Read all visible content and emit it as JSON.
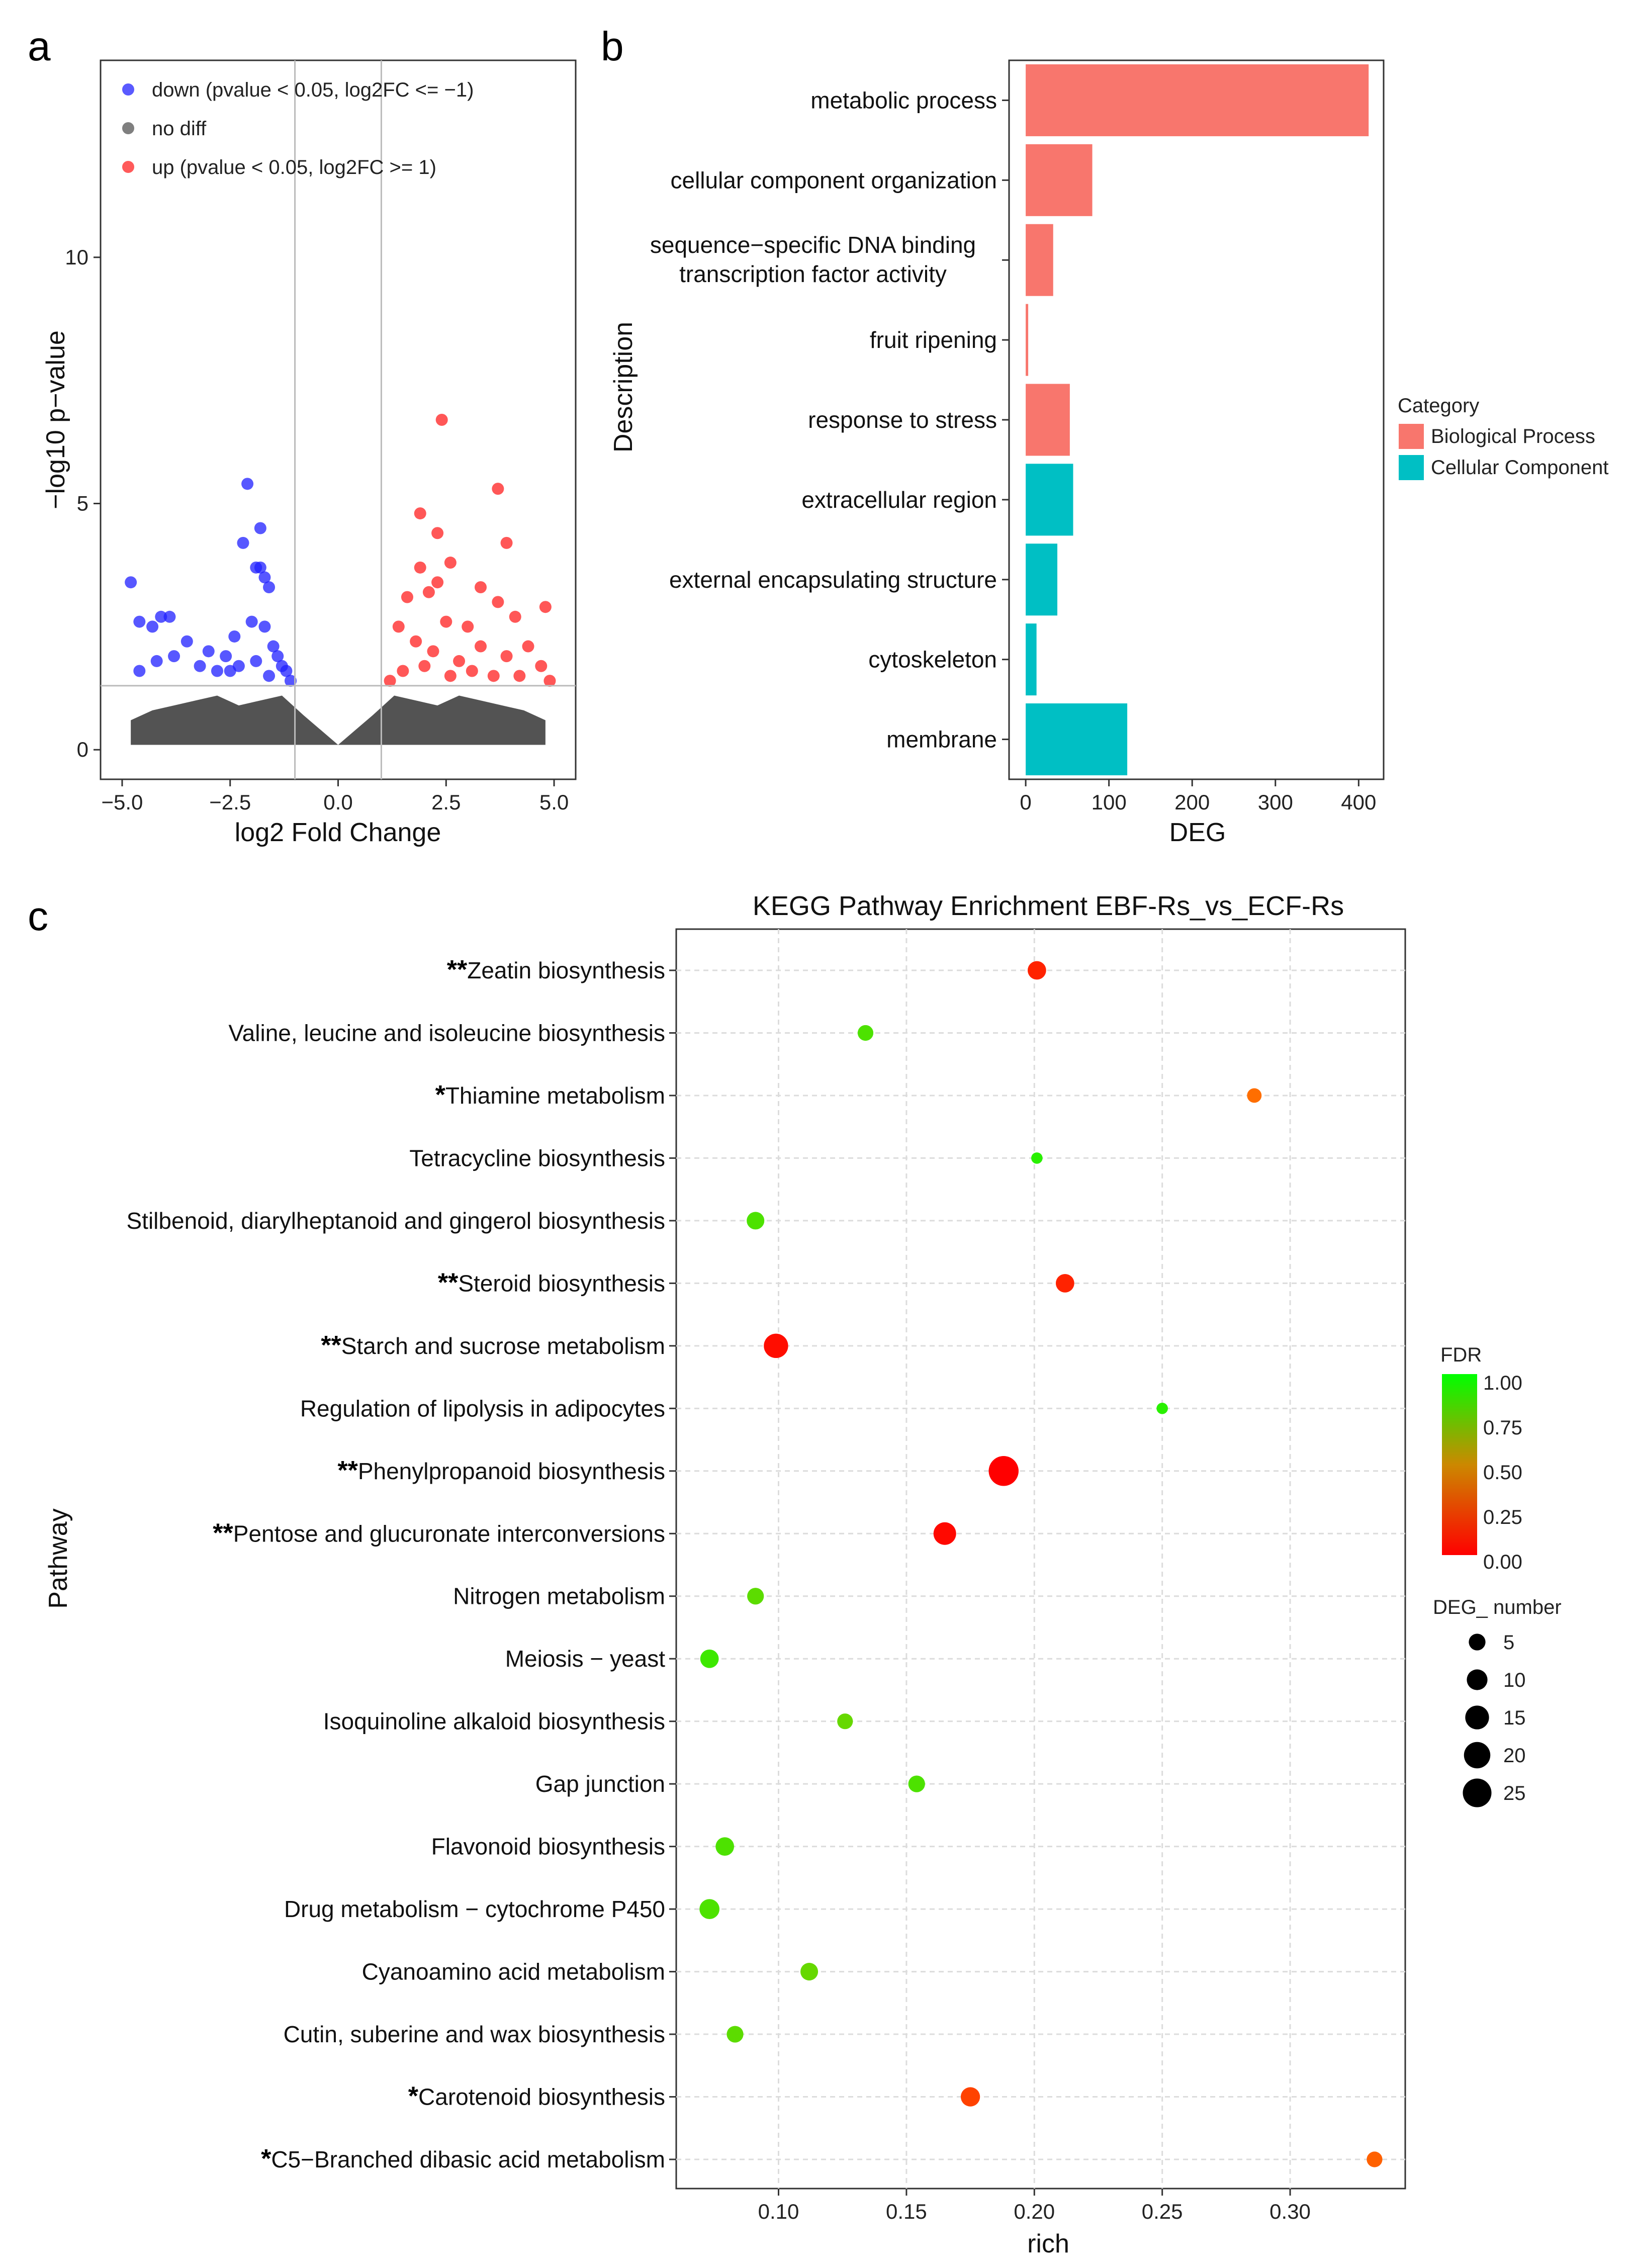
{
  "panels": {
    "a": "a",
    "b": "b",
    "c": "c"
  },
  "chart_data": [
    {
      "type": "scatter",
      "panel": "a",
      "title": "",
      "xlabel": "log2 Fold Change",
      "ylabel": "−log10 p−value",
      "xlim": [
        -5.5,
        5.5
      ],
      "ylim": [
        -0.6,
        14.0
      ],
      "xticks": [
        -5,
        -2.5,
        0,
        2.5,
        5
      ],
      "xtick_labels": [
        "−5.0",
        "−2.5",
        "0.0",
        "2.5",
        "5.0"
      ],
      "yticks": [
        0,
        5,
        10
      ],
      "ytick_labels": [
        "0",
        "5",
        "10"
      ],
      "thresholds": {
        "x": [
          -1,
          1
        ],
        "y": 1.3
      },
      "legend": {
        "placement": "top-left",
        "items": [
          {
            "label": "down (pvalue < 0.05, log2FC <= −1)",
            "color": "#5a5aff"
          },
          {
            "label": "no diff",
            "color": "#7f7f7f"
          },
          {
            "label": "up (pvalue < 0.05, log2FC >= 1)",
            "color": "#ff5a5a"
          }
        ]
      },
      "series": [
        {
          "name": "down",
          "color": "#1f1fff",
          "points": [
            [
              -4.8,
              3.4
            ],
            [
              -4.6,
              2.6
            ],
            [
              -4.3,
              2.5
            ],
            [
              -4.1,
              2.7
            ],
            [
              -3.9,
              2.7
            ],
            [
              -4.6,
              1.6
            ],
            [
              -4.2,
              1.8
            ],
            [
              -3.8,
              1.9
            ],
            [
              -3.5,
              2.2
            ],
            [
              -3.2,
              1.7
            ],
            [
              -3.0,
              2.0
            ],
            [
              -2.8,
              1.6
            ],
            [
              -2.6,
              1.9
            ],
            [
              -2.4,
              2.3
            ],
            [
              -2.3,
              1.7
            ],
            [
              -2.2,
              4.2
            ],
            [
              -2.1,
              5.4
            ],
            [
              -2.0,
              2.6
            ],
            [
              -1.9,
              3.7
            ],
            [
              -1.8,
              3.7
            ],
            [
              -1.8,
              4.5
            ],
            [
              -1.7,
              3.5
            ],
            [
              -1.6,
              3.3
            ],
            [
              -1.7,
              2.5
            ],
            [
              -1.5,
              2.1
            ],
            [
              -1.4,
              1.9
            ],
            [
              -1.3,
              1.7
            ],
            [
              -1.2,
              1.6
            ],
            [
              -1.9,
              1.8
            ],
            [
              -2.5,
              1.6
            ],
            [
              -1.6,
              1.5
            ],
            [
              -1.1,
              1.4
            ]
          ]
        },
        {
          "name": "no diff",
          "color": "#4a4a4a",
          "points": [
            [
              -4.8,
              0.6
            ],
            [
              -4.3,
              0.8
            ],
            [
              -3.8,
              0.9
            ],
            [
              -3.3,
              1.0
            ],
            [
              -2.8,
              1.1
            ],
            [
              -2.3,
              0.9
            ],
            [
              -1.8,
              1.0
            ],
            [
              -1.3,
              1.1
            ],
            [
              -0.8,
              0.7
            ],
            [
              -0.4,
              0.4
            ],
            [
              0.0,
              0.1
            ],
            [
              0.4,
              0.4
            ],
            [
              0.8,
              0.7
            ],
            [
              1.3,
              1.1
            ],
            [
              1.8,
              1.0
            ],
            [
              2.3,
              0.9
            ],
            [
              2.8,
              1.1
            ],
            [
              3.3,
              1.0
            ],
            [
              3.8,
              0.9
            ],
            [
              4.3,
              0.8
            ],
            [
              4.8,
              0.6
            ]
          ]
        },
        {
          "name": "up",
          "color": "#ff1f1f",
          "points": [
            [
              2.4,
              6.7
            ],
            [
              3.7,
              5.3
            ],
            [
              3.9,
              4.2
            ],
            [
              1.9,
              4.8
            ],
            [
              2.3,
              4.4
            ],
            [
              1.9,
              3.7
            ],
            [
              2.6,
              3.8
            ],
            [
              2.1,
              3.2
            ],
            [
              2.3,
              3.4
            ],
            [
              1.6,
              3.1
            ],
            [
              3.3,
              3.3
            ],
            [
              3.7,
              3.0
            ],
            [
              4.8,
              2.9
            ],
            [
              4.1,
              2.7
            ],
            [
              3.0,
              2.5
            ],
            [
              2.5,
              2.6
            ],
            [
              1.4,
              2.5
            ],
            [
              1.8,
              2.2
            ],
            [
              2.2,
              2.0
            ],
            [
              2.8,
              1.8
            ],
            [
              3.3,
              2.1
            ],
            [
              3.9,
              1.9
            ],
            [
              4.4,
              2.1
            ],
            [
              4.7,
              1.7
            ],
            [
              1.5,
              1.6
            ],
            [
              2.0,
              1.7
            ],
            [
              2.6,
              1.5
            ],
            [
              3.1,
              1.6
            ],
            [
              3.6,
              1.5
            ],
            [
              4.2,
              1.5
            ],
            [
              4.9,
              1.4
            ],
            [
              1.2,
              1.4
            ]
          ]
        }
      ]
    },
    {
      "type": "bar",
      "panel": "b",
      "orientation": "horizontal",
      "title": "",
      "xlabel": "DEG",
      "ylabel": "Description",
      "xlim": [
        -20,
        430
      ],
      "xticks": [
        0,
        100,
        200,
        300,
        400
      ],
      "xtick_labels": [
        "0",
        "100",
        "200",
        "300",
        "400"
      ],
      "categories": [
        "metabolic process",
        "cellular component organization",
        "sequence−specific DNA binding|transcription factor activity",
        "fruit ripening",
        "response to stress",
        "extracellular region",
        "external encapsulating structure",
        "cytoskeleton",
        "membrane"
      ],
      "values": [
        412,
        80,
        33,
        3,
        53,
        57,
        38,
        13,
        122
      ],
      "category_group": [
        "Biological Process",
        "Biological Process",
        "Biological Process",
        "Biological Process",
        "Biological Process",
        "Cellular Component",
        "Cellular Component",
        "Cellular Component",
        "Cellular Component"
      ],
      "legend": {
        "title": "Category",
        "placement": "right",
        "items": [
          {
            "label": "Biological Process",
            "color": "#f8766d"
          },
          {
            "label": "Cellular Component",
            "color": "#00bfc4"
          }
        ]
      }
    },
    {
      "type": "scatter",
      "panel": "c",
      "title": "KEGG Pathway Enrichment  EBF-Rs_vs_ECF-Rs",
      "xlabel": "rich",
      "ylabel": "Pathway",
      "xlim": [
        0.06,
        0.345
      ],
      "xticks": [
        0.1,
        0.15,
        0.2,
        0.25,
        0.3
      ],
      "xtick_labels": [
        "0.10",
        "0.15",
        "0.20",
        "0.25",
        "0.30"
      ],
      "pathways": [
        {
          "name": "Zeatin biosynthesis",
          "star": "**",
          "rich": 0.201,
          "fdr": 0.08,
          "deg": 7
        },
        {
          "name": "Valine, leucine and isoleucine biosynthesis",
          "star": "",
          "rich": 0.134,
          "fdr": 0.85,
          "deg": 4
        },
        {
          "name": "Thiamine metabolism",
          "star": "*",
          "rich": 0.286,
          "fdr": 0.25,
          "deg": 3
        },
        {
          "name": "Tetracycline biosynthesis",
          "star": "",
          "rich": 0.201,
          "fdr": 0.92,
          "deg": 1
        },
        {
          "name": "Stilbenoid, diarylheptanoid and gingerol biosynthesis",
          "star": "",
          "rich": 0.091,
          "fdr": 0.85,
          "deg": 6
        },
        {
          "name": "Steroid biosynthesis",
          "star": "**",
          "rich": 0.212,
          "fdr": 0.08,
          "deg": 7
        },
        {
          "name": "Starch and sucrose metabolism",
          "star": "**",
          "rich": 0.099,
          "fdr": 0.03,
          "deg": 16
        },
        {
          "name": "Regulation of lipolysis in adipocytes",
          "star": "",
          "rich": 0.25,
          "fdr": 0.92,
          "deg": 1
        },
        {
          "name": "Phenylpropanoid biosynthesis",
          "star": "**",
          "rich": 0.188,
          "fdr": 0.0,
          "deg": 28
        },
        {
          "name": "Pentose and glucuronate interconversions",
          "star": "**",
          "rich": 0.165,
          "fdr": 0.02,
          "deg": 13
        },
        {
          "name": "Nitrogen metabolism",
          "star": "",
          "rich": 0.091,
          "fdr": 0.82,
          "deg": 5
        },
        {
          "name": "Meiosis − yeast",
          "star": "",
          "rich": 0.073,
          "fdr": 0.88,
          "deg": 7
        },
        {
          "name": "Isoquinoline alkaloid biosynthesis",
          "star": "",
          "rich": 0.126,
          "fdr": 0.8,
          "deg": 4
        },
        {
          "name": "Gap junction",
          "star": "",
          "rich": 0.154,
          "fdr": 0.85,
          "deg": 5
        },
        {
          "name": "Flavonoid biosynthesis",
          "star": "",
          "rich": 0.079,
          "fdr": 0.85,
          "deg": 7
        },
        {
          "name": "Drug metabolism − cytochrome P450",
          "star": "",
          "rich": 0.073,
          "fdr": 0.85,
          "deg": 9
        },
        {
          "name": "Cyanoamino acid metabolism",
          "star": "",
          "rich": 0.112,
          "fdr": 0.8,
          "deg": 6
        },
        {
          "name": "Cutin, suberine and wax biosynthesis",
          "star": "",
          "rich": 0.083,
          "fdr": 0.82,
          "deg": 5
        },
        {
          "name": "Carotenoid biosynthesis",
          "star": "*",
          "rich": 0.175,
          "fdr": 0.15,
          "deg": 8
        },
        {
          "name": "C5−Branched dibasic acid metabolism",
          "star": "*",
          "rich": 0.333,
          "fdr": 0.22,
          "deg": 4
        }
      ],
      "legend_fdr": {
        "title": "FDR",
        "ticks": [
          "1.00",
          "0.75",
          "0.50",
          "0.25",
          "0.00"
        ],
        "placement": "right"
      },
      "legend_size": {
        "title": "DEG_ number",
        "values": [
          5,
          10,
          15,
          20,
          25
        ],
        "labels": [
          "5",
          "10",
          "15",
          "20",
          "25"
        ],
        "placement": "right"
      }
    }
  ]
}
